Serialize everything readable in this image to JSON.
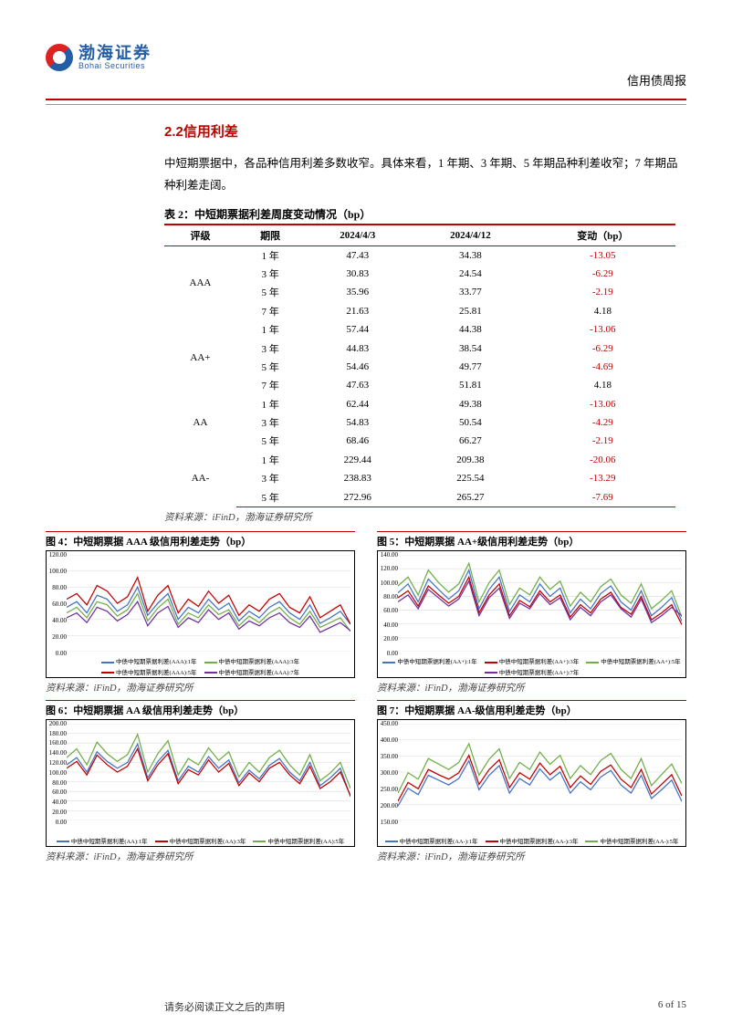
{
  "header": {
    "logo_cn": "渤海证券",
    "logo_en": "Bohai Securities",
    "report_type": "信用债周报"
  },
  "section": {
    "number": "2.2",
    "title": "信用利差"
  },
  "body_text": "中短期票据中，各品种信用利差多数收窄。具体来看，1 年期、3 年期、5 年期品种利差收窄；7 年期品种利差走阔。",
  "table": {
    "title": "表 2：中短期票据利差周度变动情况（bp）",
    "columns": [
      "评级",
      "期限",
      "2024/4/3",
      "2024/4/12",
      "变动（bp）"
    ],
    "groups": [
      {
        "rating": "AAA",
        "rows": [
          {
            "term": "1 年",
            "v0": "47.43",
            "v1": "34.38",
            "chg": "-13.05",
            "neg": true
          },
          {
            "term": "3 年",
            "v0": "30.83",
            "v1": "24.54",
            "chg": "-6.29",
            "neg": true
          },
          {
            "term": "5 年",
            "v0": "35.96",
            "v1": "33.77",
            "chg": "-2.19",
            "neg": true
          },
          {
            "term": "7 年",
            "v0": "21.63",
            "v1": "25.81",
            "chg": "4.18",
            "neg": false
          }
        ]
      },
      {
        "rating": "AA+",
        "rows": [
          {
            "term": "1 年",
            "v0": "57.44",
            "v1": "44.38",
            "chg": "-13.06",
            "neg": true
          },
          {
            "term": "3 年",
            "v0": "44.83",
            "v1": "38.54",
            "chg": "-6.29",
            "neg": true
          },
          {
            "term": "5 年",
            "v0": "54.46",
            "v1": "49.77",
            "chg": "-4.69",
            "neg": true
          },
          {
            "term": "7 年",
            "v0": "47.63",
            "v1": "51.81",
            "chg": "4.18",
            "neg": false
          }
        ]
      },
      {
        "rating": "AA",
        "rows": [
          {
            "term": "1 年",
            "v0": "62.44",
            "v1": "49.38",
            "chg": "-13.06",
            "neg": true
          },
          {
            "term": "3 年",
            "v0": "54.83",
            "v1": "50.54",
            "chg": "-4.29",
            "neg": true
          },
          {
            "term": "5 年",
            "v0": "68.46",
            "v1": "66.27",
            "chg": "-2.19",
            "neg": true
          }
        ]
      },
      {
        "rating": "AA-",
        "rows": [
          {
            "term": "1 年",
            "v0": "229.44",
            "v1": "209.38",
            "chg": "-20.06",
            "neg": true
          },
          {
            "term": "3 年",
            "v0": "238.83",
            "v1": "225.54",
            "chg": "-13.29",
            "neg": true
          },
          {
            "term": "5 年",
            "v0": "272.96",
            "v1": "265.27",
            "chg": "-7.69",
            "neg": true
          }
        ]
      }
    ],
    "source": "资料来源：iFinD，渤海证券研究所"
  },
  "charts": [
    {
      "id": "fig4",
      "title": "图 4：中短期票据 AAA 级信用利差走势（bp）",
      "ylim": [
        0,
        120
      ],
      "yticks": [
        0,
        20,
        40,
        60,
        80,
        100,
        120
      ],
      "grid_color": "#d9d9d9",
      "background_color": "#ffffff",
      "series": [
        {
          "name": "中债中短期票据利差(AAA):1年",
          "color": "#4472c4",
          "data": [
            55,
            62,
            48,
            70,
            65,
            50,
            58,
            80,
            45,
            60,
            72,
            40,
            55,
            48,
            65,
            52,
            60,
            38,
            50,
            42,
            55,
            62,
            48,
            40,
            58,
            35,
            42,
            50,
            34
          ]
        },
        {
          "name": "中债中短期票据利差(AAA):3年",
          "color": "#70ad47",
          "data": [
            48,
            55,
            42,
            62,
            58,
            44,
            52,
            72,
            38,
            54,
            65,
            34,
            48,
            42,
            58,
            46,
            52,
            32,
            44,
            36,
            48,
            55,
            42,
            34,
            50,
            30,
            36,
            42,
            25
          ]
        },
        {
          "name": "中债中短期票据利差(AAA):5年",
          "color": "#c00000",
          "data": [
            65,
            72,
            58,
            82,
            75,
            60,
            68,
            92,
            50,
            70,
            82,
            48,
            65,
            56,
            75,
            60,
            70,
            45,
            58,
            50,
            65,
            72,
            55,
            48,
            68,
            42,
            50,
            58,
            34
          ]
        },
        {
          "name": "中债中短期票据利差(AAA):7年",
          "color": "#7030a0",
          "data": [
            42,
            48,
            36,
            55,
            50,
            38,
            46,
            62,
            32,
            48,
            56,
            30,
            42,
            36,
            52,
            40,
            48,
            28,
            38,
            32,
            42,
            48,
            36,
            30,
            44,
            24,
            30,
            36,
            26
          ]
        }
      ],
      "source": "资料来源：iFinD，渤海证券研究所"
    },
    {
      "id": "fig5",
      "title": "图 5：中短期票据 AA+级信用利差走势（bp）",
      "ylim": [
        0,
        140
      ],
      "yticks": [
        0,
        20,
        40,
        60,
        80,
        100,
        120,
        140
      ],
      "grid_color": "#d9d9d9",
      "background_color": "#ffffff",
      "series": [
        {
          "name": "中债中短期票据利差(AA+):1年",
          "color": "#4472c4",
          "data": [
            85,
            98,
            72,
            105,
            90,
            76,
            88,
            118,
            62,
            90,
            108,
            58,
            82,
            72,
            98,
            80,
            92,
            56,
            76,
            62,
            84,
            95,
            72,
            60,
            88,
            52,
            64,
            78,
            44
          ]
        },
        {
          "name": "中债中短期票据利差(AA+):3年",
          "color": "#c00000",
          "data": [
            78,
            88,
            66,
            95,
            82,
            70,
            80,
            108,
            56,
            82,
            98,
            52,
            74,
            65,
            88,
            72,
            82,
            50,
            68,
            56,
            76,
            86,
            64,
            54,
            80,
            46,
            56,
            68,
            39
          ]
        },
        {
          "name": "中债中短期票据利差(AA+):5年",
          "color": "#70ad47",
          "data": [
            95,
            108,
            82,
            118,
            100,
            86,
            98,
            128,
            72,
            100,
            118,
            68,
            92,
            82,
            108,
            90,
            102,
            66,
            86,
            72,
            94,
            105,
            82,
            70,
            98,
            62,
            74,
            88,
            50
          ]
        },
        {
          "name": "中债中短期票据利差(AA+):7年",
          "color": "#7030a0",
          "data": [
            72,
            82,
            62,
            90,
            78,
            66,
            76,
            102,
            52,
            78,
            92,
            48,
            70,
            62,
            84,
            68,
            78,
            46,
            64,
            52,
            72,
            82,
            62,
            50,
            76,
            42,
            52,
            64,
            52
          ]
        }
      ],
      "source": "资料来源：iFinD，渤海证券研究所"
    },
    {
      "id": "fig6",
      "title": "图 6：中短期票据 AA 级信用利差走势（bp）",
      "ylim": [
        0,
        200
      ],
      "yticks": [
        0,
        20,
        40,
        60,
        80,
        100,
        120,
        140,
        160,
        180,
        200
      ],
      "grid_color": "#d9d9d9",
      "background_color": "#ffffff",
      "series": [
        {
          "name": "中债中短期票据利差(AA):1年",
          "color": "#4472c4",
          "data": [
            115,
            130,
            100,
            142,
            122,
            108,
            120,
            158,
            88,
            122,
            145,
            82,
            112,
            100,
            132,
            108,
            125,
            78,
            104,
            86,
            114,
            128,
            100,
            82,
            120,
            72,
            88,
            108,
            49
          ]
        },
        {
          "name": "中债中短期票据利差(AA):3年",
          "color": "#c00000",
          "data": [
            108,
            122,
            94,
            135,
            115,
            100,
            112,
            148,
            82,
            115,
            138,
            76,
            105,
            94,
            125,
            100,
            118,
            72,
            98,
            80,
            108,
            120,
            94,
            76,
            112,
            66,
            80,
            100,
            51
          ]
        },
        {
          "name": "中债中短期票据利差(AA):5年",
          "color": "#70ad47",
          "data": [
            130,
            148,
            115,
            162,
            138,
            122,
            136,
            178,
            100,
            138,
            165,
            94,
            128,
            115,
            150,
            124,
            142,
            90,
            120,
            100,
            130,
            145,
            115,
            94,
            136,
            82,
            98,
            120,
            66
          ]
        }
      ],
      "source": "资料来源：iFinD，渤海证券研究所"
    },
    {
      "id": "fig7",
      "title": "图 7：中短期票据 AA-级信用利差走势（bp）",
      "ylim": [
        150,
        450
      ],
      "yticks": [
        150,
        200,
        250,
        300,
        350,
        400,
        450
      ],
      "grid_color": "#d9d9d9",
      "background_color": "#ffffff",
      "series": [
        {
          "name": "中债中短期票据利差(AA-):1年",
          "color": "#4472c4",
          "data": [
            195,
            250,
            230,
            290,
            275,
            260,
            280,
            335,
            245,
            290,
            320,
            235,
            280,
            260,
            310,
            275,
            300,
            235,
            270,
            245,
            285,
            305,
            260,
            235,
            290,
            218,
            245,
            275,
            209
          ]
        },
        {
          "name": "中债中短期票据利差(AA-):3年",
          "color": "#c00000",
          "data": [
            210,
            268,
            248,
            308,
            292,
            278,
            298,
            352,
            262,
            308,
            338,
            252,
            298,
            278,
            328,
            292,
            318,
            252,
            288,
            262,
            302,
            322,
            278,
            252,
            308,
            232,
            262,
            292,
            226
          ]
        },
        {
          "name": "中债中短期票据利差(AA-):5年",
          "color": "#70ad47",
          "data": [
            235,
            298,
            278,
            342,
            325,
            308,
            330,
            388,
            290,
            340,
            372,
            280,
            330,
            308,
            362,
            324,
            352,
            280,
            320,
            292,
            336,
            358,
            308,
            280,
            342,
            258,
            292,
            325,
            265
          ]
        }
      ],
      "source": "资料来源：iFinD，渤海证券研究所"
    }
  ],
  "footer": {
    "disclaimer": "请务必阅读正文之后的声明",
    "page": "6 of 15"
  }
}
